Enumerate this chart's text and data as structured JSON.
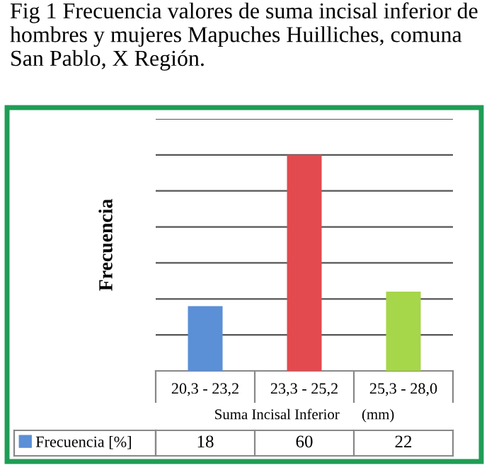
{
  "chart_data": {
    "type": "bar",
    "title": "Fig 1 Frecuencia valores de suma incisal inferior de hombres y mujeres Mapuches Huilliches, comuna San Pablo, X Región.",
    "ylabel": "Frecuencia",
    "xlabel": "Suma Incisal Inferior      (mm)",
    "categories": [
      "20,3 - 23,2",
      "23,3 - 25,2",
      "25,3 - 28,0"
    ],
    "series": [
      {
        "name": "Frecuencia [%]",
        "color": "#5b8fd6",
        "colors": [
          "#5b8fd6",
          "#e24a4f",
          "#a6d64a"
        ],
        "values": [
          18,
          60,
          22
        ]
      }
    ],
    "ylim": [
      0,
      70
    ],
    "yticks": [
      {
        "value": 0,
        "label": null
      },
      {
        "value": 10,
        "label": null
      },
      {
        "value": 20,
        "label": null
      },
      {
        "value": 30,
        "label": null
      },
      {
        "value": 40,
        "label": null
      },
      {
        "value": 50,
        "label": null
      },
      {
        "value": 60,
        "label": null
      },
      {
        "value": 70,
        "label": null
      }
    ],
    "tick_labels": "x",
    "grid": "y",
    "legend": "bottom",
    "data_labels": true
  }
}
